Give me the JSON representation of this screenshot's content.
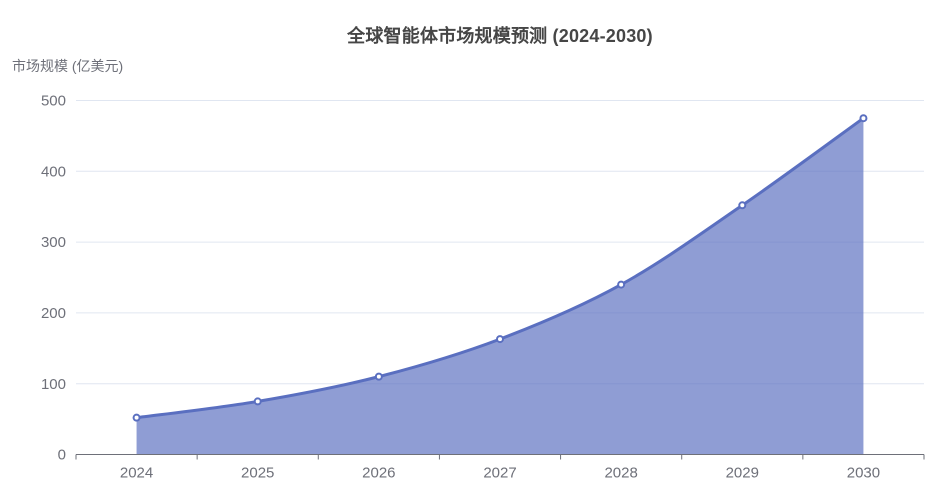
{
  "chart_data": {
    "type": "area",
    "title": "全球智能体市场规模预测 (2024-2030)",
    "xlabel": "",
    "ylabel": "市场规模 (亿美元)",
    "categories": [
      "2024",
      "2025",
      "2026",
      "2027",
      "2028",
      "2029",
      "2030"
    ],
    "values": [
      52,
      75,
      110,
      163,
      240,
      352,
      475
    ],
    "series_name": "市场规模",
    "ylim": [
      0,
      500
    ],
    "yticks": [
      0,
      100,
      200,
      300,
      400,
      500
    ],
    "grid": true,
    "legend": "none",
    "smooth": true,
    "marker": "hollow-circle",
    "colors": {
      "line": "#5a6fc0",
      "area": "#5a6fc0",
      "area_opacity": 0.68,
      "marker_fill": "#ffffff",
      "gridline": "#e0e6f1",
      "axis_line": "#6e7079",
      "axis_label": "#6e7079",
      "title": "#464646",
      "background": "#ffffff"
    }
  }
}
